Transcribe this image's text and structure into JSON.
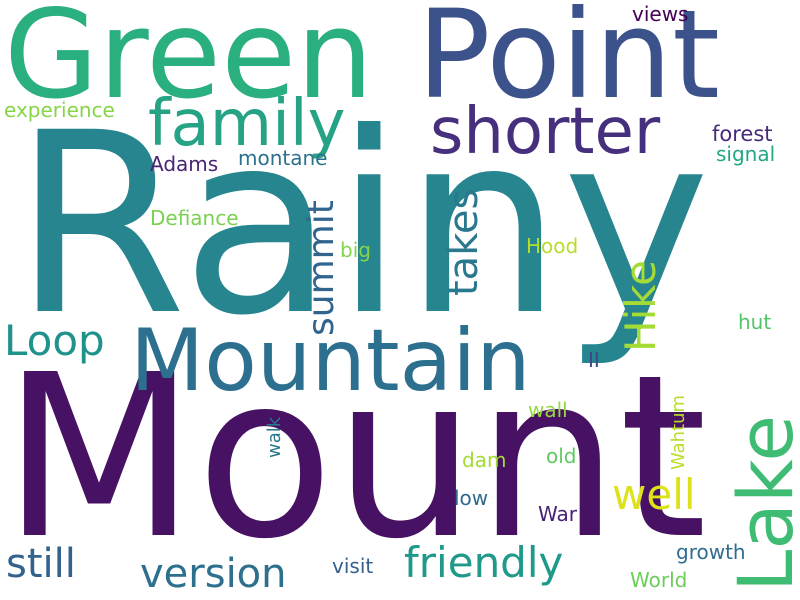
{
  "words": {
    "rainy": {
      "text": "Rainy",
      "color": "#26858e"
    },
    "mount": {
      "text": "Mount",
      "color": "#471164"
    },
    "green": {
      "text": "Green",
      "color": "#2aaf7f"
    },
    "point": {
      "text": "Point",
      "color": "#3b528b"
    },
    "family": {
      "text": "family",
      "color": "#26a384"
    },
    "shorter": {
      "text": "shorter",
      "color": "#46307e"
    },
    "mountain": {
      "text": "Mountain",
      "color": "#2c6f8e"
    },
    "lake": {
      "text": "Lake",
      "color": "#3fbc73"
    },
    "takes": {
      "text": "takes",
      "color": "#2a788e"
    },
    "summit": {
      "text": "summit",
      "color": "#32658e"
    },
    "hike": {
      "text": "Hike",
      "color": "#a5db36"
    },
    "loop": {
      "text": "Loop",
      "color": "#20928c"
    },
    "well": {
      "text": "well",
      "color": "#dde318"
    },
    "friendly": {
      "text": "friendly",
      "color": "#1f998a"
    },
    "version": {
      "text": "version",
      "color": "#2d708e"
    },
    "still": {
      "text": "still",
      "color": "#33638d"
    },
    "experience": {
      "text": "experience",
      "color": "#86d549"
    },
    "views": {
      "text": "views",
      "color": "#440154"
    },
    "forest": {
      "text": "forest",
      "color": "#472a7a"
    },
    "signal": {
      "text": "signal",
      "color": "#22a785"
    },
    "adams": {
      "text": "Adams",
      "color": "#482475"
    },
    "montane": {
      "text": "montane",
      "color": "#2d708e"
    },
    "defiance": {
      "text": "Defiance",
      "color": "#7ad151"
    },
    "big": {
      "text": "big",
      "color": "#84d44b"
    },
    "hood": {
      "text": "Hood",
      "color": "#b5de2b"
    },
    "hut": {
      "text": "hut",
      "color": "#52c569"
    },
    "ii": {
      "text": "II",
      "color": "#3e4989"
    },
    "wahtum": {
      "text": "Wahtum",
      "color": "#b8de29"
    },
    "wall": {
      "text": "wall",
      "color": "#95d840"
    },
    "walk": {
      "text": "walk",
      "color": "#2a788e"
    },
    "dam": {
      "text": "dam",
      "color": "#a2da37"
    },
    "old": {
      "text": "old",
      "color": "#5ec962"
    },
    "low": {
      "text": "low",
      "color": "#31688e"
    },
    "war": {
      "text": "War",
      "color": "#482173"
    },
    "growth": {
      "text": "growth",
      "color": "#2e6d8e"
    },
    "visit": {
      "text": "visit",
      "color": "#355f8d"
    },
    "world": {
      "text": "World",
      "color": "#6ccd5a"
    }
  }
}
